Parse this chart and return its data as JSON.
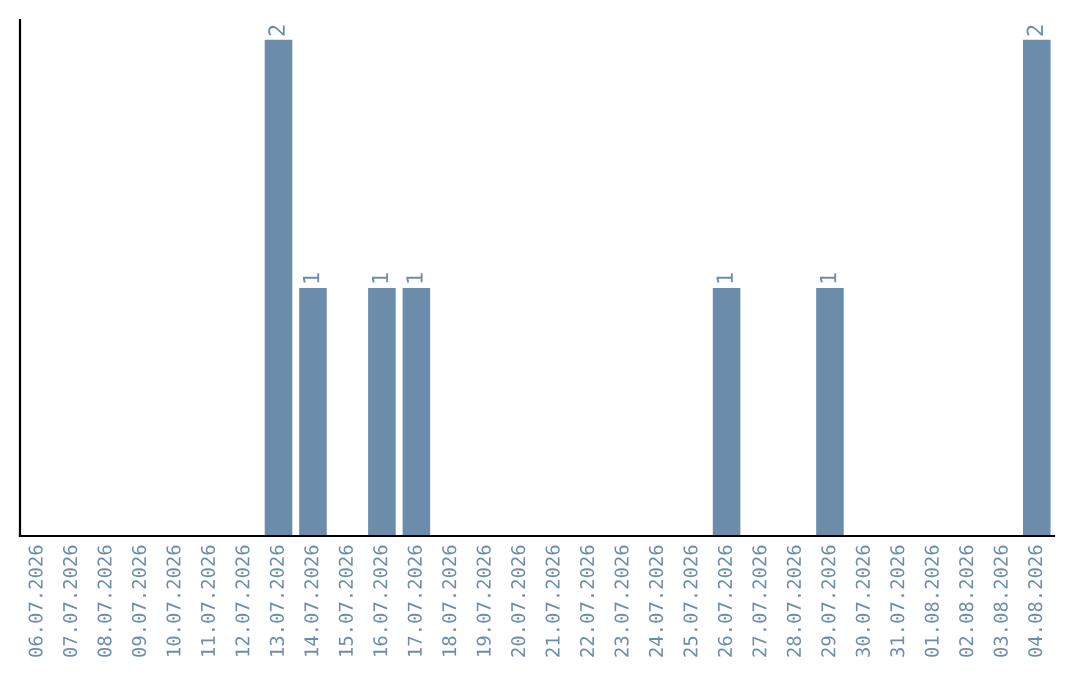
{
  "chart_data": {
    "type": "bar",
    "categories": [
      "06.07.2026",
      "07.07.2026",
      "08.07.2026",
      "09.07.2026",
      "10.07.2026",
      "11.07.2026",
      "12.07.2026",
      "13.07.2026",
      "14.07.2026",
      "15.07.2026",
      "16.07.2026",
      "17.07.2026",
      "18.07.2026",
      "19.07.2026",
      "20.07.2026",
      "21.07.2026",
      "22.07.2026",
      "23.07.2026",
      "24.07.2026",
      "25.07.2026",
      "26.07.2026",
      "27.07.2026",
      "28.07.2026",
      "29.07.2026",
      "30.07.2026",
      "31.07.2026",
      "01.08.2026",
      "02.08.2026",
      "03.08.2026",
      "04.08.2026"
    ],
    "values": [
      0,
      0,
      0,
      0,
      0,
      0,
      0,
      2,
      1,
      0,
      1,
      1,
      0,
      0,
      0,
      0,
      0,
      0,
      0,
      0,
      1,
      0,
      0,
      1,
      0,
      0,
      0,
      0,
      0,
      2
    ],
    "value_labels": [
      null,
      null,
      null,
      null,
      null,
      null,
      null,
      "2",
      "1",
      null,
      "1",
      "1",
      null,
      null,
      null,
      null,
      null,
      null,
      null,
      null,
      "1",
      null,
      null,
      "1",
      null,
      null,
      null,
      null,
      null,
      "2"
    ],
    "color": "#6b8cab",
    "ylim": [
      0,
      2.08
    ],
    "tick_labels": "x",
    "grid": false,
    "legend": false
  }
}
